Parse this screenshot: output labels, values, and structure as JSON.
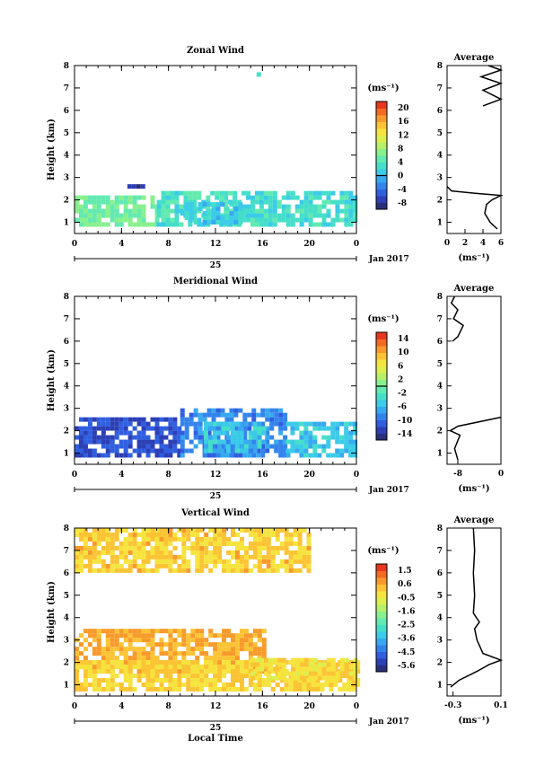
{
  "chart_data": [
    {
      "type": "heatmap",
      "title": "Zonal Wind",
      "xlabel": "",
      "ylabel": "Height (km)",
      "unit": "(ms⁻¹)",
      "date_label": "Jan 2017",
      "day_label": "25",
      "xlim": [
        0,
        24
      ],
      "ylim": [
        0.5,
        8
      ],
      "xticks": [
        "0",
        "4",
        "8",
        "12",
        "16",
        "20",
        "0"
      ],
      "yticks": [
        "1",
        "2",
        "3",
        "4",
        "5",
        "6",
        "7",
        "8"
      ],
      "colorbar_ticks": [
        "20",
        "16",
        "12",
        "8",
        "4",
        "0",
        "-4",
        "-8"
      ],
      "colorbar_range": [
        -10,
        22
      ],
      "zero_line": 0,
      "regions": [
        {
          "x": [
            0,
            7
          ],
          "y": [
            0.8,
            2.0
          ],
          "value": 6
        },
        {
          "x": [
            7,
            24
          ],
          "y": [
            0.8,
            2.4
          ],
          "value": 3
        },
        {
          "x": [
            9,
            14
          ],
          "y": [
            0.9,
            1.8
          ],
          "value": 1
        },
        {
          "x": [
            4.5,
            6.3
          ],
          "y": [
            2.5,
            2.7
          ],
          "value": -8
        },
        {
          "x": [
            15.5,
            15.8
          ],
          "y": [
            7.5,
            7.7
          ],
          "value": 5
        }
      ],
      "average": {
        "title": "Average",
        "xlabel": "(ms⁻¹)",
        "xticks": [
          "0",
          "2",
          "4",
          "6"
        ],
        "xlim": [
          0,
          6
        ],
        "profile": [
          [
            5.6,
            0.7
          ],
          [
            4.8,
            1.0
          ],
          [
            4.2,
            1.4
          ],
          [
            4.4,
            1.8
          ],
          [
            5.0,
            2.0
          ],
          [
            6.0,
            2.2
          ],
          [
            3.0,
            2.3
          ],
          [
            0.5,
            2.4
          ],
          [
            0,
            2.6
          ]
        ],
        "profile_upper": [
          [
            4.0,
            6.2
          ],
          [
            6.0,
            6.5
          ],
          [
            4.0,
            6.9
          ],
          [
            6.0,
            7.2
          ],
          [
            3.8,
            7.5
          ],
          [
            6.0,
            7.8
          ],
          [
            4.6,
            8.0
          ]
        ]
      }
    },
    {
      "type": "heatmap",
      "title": "Meridional Wind",
      "xlabel": "",
      "ylabel": "Height (km)",
      "unit": "(ms⁻¹)",
      "date_label": "Jan 2017",
      "day_label": "25",
      "xlim": [
        0,
        24
      ],
      "ylim": [
        0.5,
        8
      ],
      "xticks": [
        "0",
        "4",
        "8",
        "12",
        "16",
        "20",
        "0"
      ],
      "yticks": [
        "1",
        "2",
        "3",
        "4",
        "5",
        "6",
        "7",
        "8"
      ],
      "colorbar_ticks": [
        "14",
        "10",
        "6",
        "2",
        "-2",
        "-6",
        "-10",
        "-14"
      ],
      "colorbar_range": [
        -16,
        16
      ],
      "zero_line": 0,
      "regions": [
        {
          "x": [
            0,
            9
          ],
          "y": [
            0.8,
            2.6
          ],
          "value": -12
        },
        {
          "x": [
            9,
            18
          ],
          "y": [
            0.8,
            2.9
          ],
          "value": -9
        },
        {
          "x": [
            11,
            16
          ],
          "y": [
            1.0,
            2.2
          ],
          "value": -5
        },
        {
          "x": [
            18,
            24
          ],
          "y": [
            0.8,
            2.3
          ],
          "value": -5
        }
      ],
      "average": {
        "title": "Average",
        "xlabel": "(ms⁻¹)",
        "xticks": [
          "-8",
          "0"
        ],
        "xlim": [
          -10,
          0
        ],
        "profile": [
          [
            -8.0,
            0.7
          ],
          [
            -8.6,
            1.2
          ],
          [
            -7.6,
            1.8
          ],
          [
            -9.4,
            2.0
          ],
          [
            -8.0,
            2.2
          ],
          [
            -4.0,
            2.4
          ],
          [
            0,
            2.6
          ]
        ],
        "profile_upper": [
          [
            -9.0,
            6.0
          ],
          [
            -8.0,
            6.2
          ],
          [
            -7.0,
            6.7
          ],
          [
            -8.8,
            7.0
          ],
          [
            -8.0,
            7.4
          ],
          [
            -9.2,
            7.7
          ],
          [
            -8.6,
            8.0
          ]
        ]
      }
    },
    {
      "type": "heatmap",
      "title": "Vertical Wind",
      "xlabel": "Local Time",
      "ylabel": "Height (km)",
      "unit": "(ms⁻¹)",
      "date_label": "Jan 2017",
      "day_label": "25",
      "xlim": [
        0,
        24
      ],
      "ylim": [
        0.5,
        8
      ],
      "xticks": [
        "0",
        "4",
        "8",
        "12",
        "16",
        "20",
        "0"
      ],
      "yticks": [
        "1",
        "2",
        "3",
        "4",
        "5",
        "6",
        "7",
        "8"
      ],
      "colorbar_ticks": [
        "1.5",
        "0.6",
        "-0.5",
        "-1.6",
        "-2.5",
        "-3.6",
        "-4.5",
        "-5.6"
      ],
      "colorbar_range": [
        -6,
        2
      ],
      "zero_line": null,
      "regions": [
        {
          "x": [
            0,
            20
          ],
          "y": [
            6.0,
            8.0
          ],
          "value": 0.1
        },
        {
          "x": [
            0,
            16
          ],
          "y": [
            1.5,
            3.5
          ],
          "value": 0.5
        },
        {
          "x": [
            0,
            24
          ],
          "y": [
            0.7,
            2.0
          ],
          "value": 0.0
        },
        {
          "x": [
            15,
            24
          ],
          "y": [
            1.2,
            2.0
          ],
          "value": -0.2
        }
      ],
      "average": {
        "title": "Average",
        "xlabel": "(ms⁻¹)",
        "xticks": [
          "-0.3",
          "0.1"
        ],
        "xlim": [
          -0.35,
          0.1
        ],
        "profile": [
          [
            -0.32,
            0.9
          ],
          [
            -0.25,
            1.2
          ],
          [
            -0.1,
            1.6
          ],
          [
            0.0,
            1.9
          ],
          [
            0.1,
            2.1
          ],
          [
            -0.05,
            2.4
          ],
          [
            -0.1,
            3.0
          ],
          [
            -0.12,
            3.5
          ],
          [
            -0.08,
            3.8
          ],
          [
            -0.13,
            4.2
          ],
          [
            -0.12,
            5.0
          ],
          [
            -0.13,
            6.0
          ],
          [
            -0.12,
            7.0
          ],
          [
            -0.13,
            8.0
          ]
        ],
        "profile_upper": []
      }
    }
  ]
}
